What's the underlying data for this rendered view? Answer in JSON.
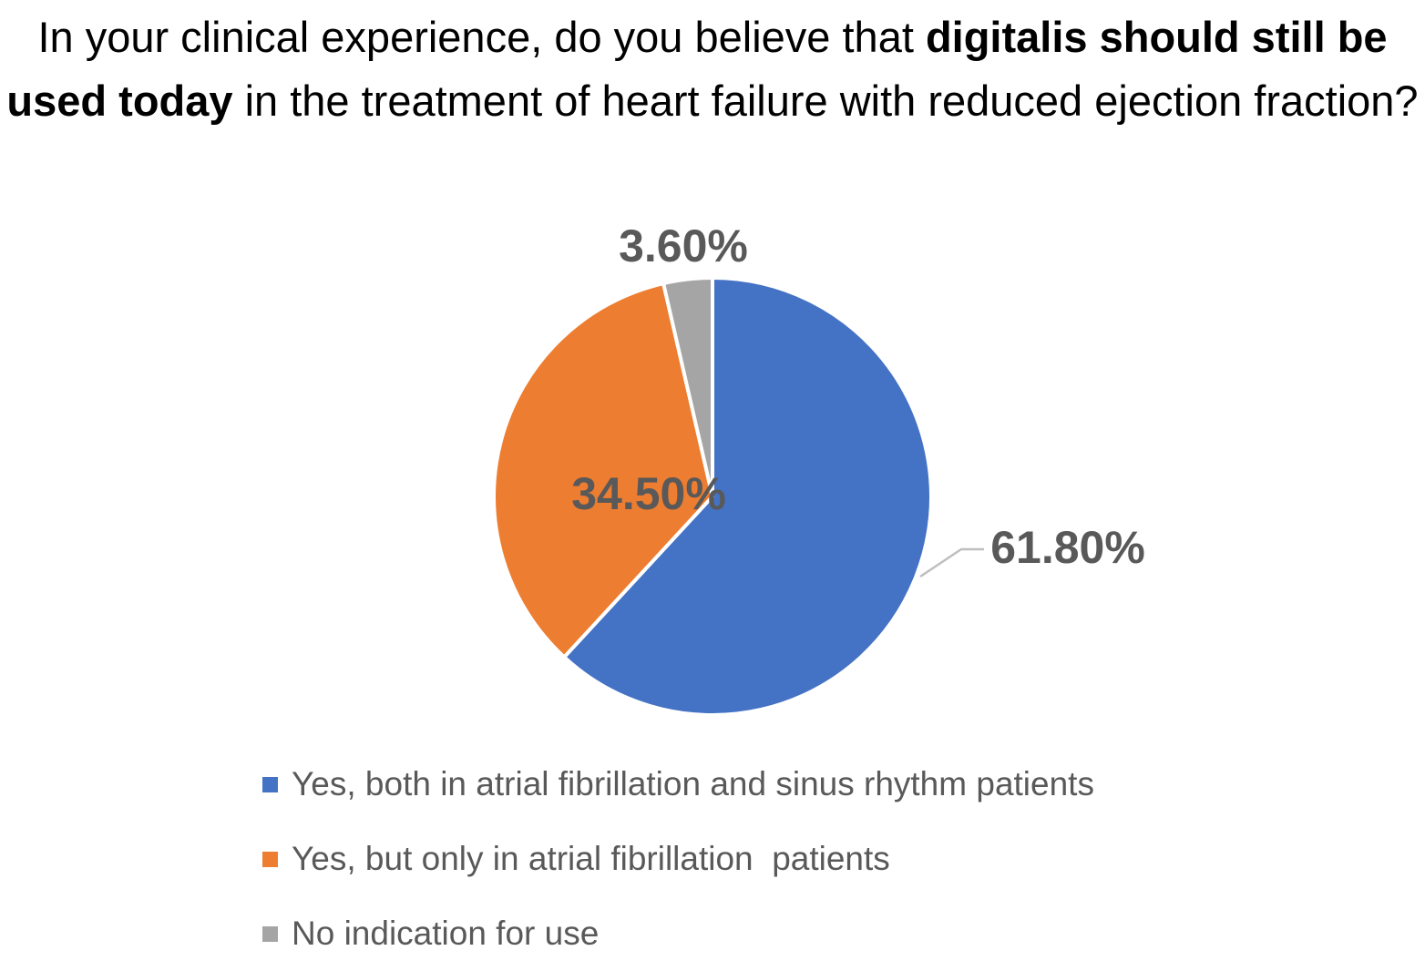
{
  "chart_data": {
    "type": "pie",
    "title": {
      "part1": "In your clinical experience, do you believe that ",
      "bold1": "digitalis should still be used today",
      "part2": "  in the treatment of heart failure with reduced ejection fraction?"
    },
    "slices": [
      {
        "label": "Yes, both in atrial fibrillation and sinus rhythm patients",
        "value": 61.8,
        "display": "61.80%",
        "color": "#4472C4"
      },
      {
        "label": "Yes, but only in atrial fibrillation  patients",
        "value": 34.5,
        "display": "34.50%",
        "color": "#ED7D31"
      },
      {
        "label": "No indication for use",
        "value": 3.6,
        "display": "3.60%",
        "color": "#A5A5A5"
      }
    ],
    "legend_position": "bottom"
  }
}
